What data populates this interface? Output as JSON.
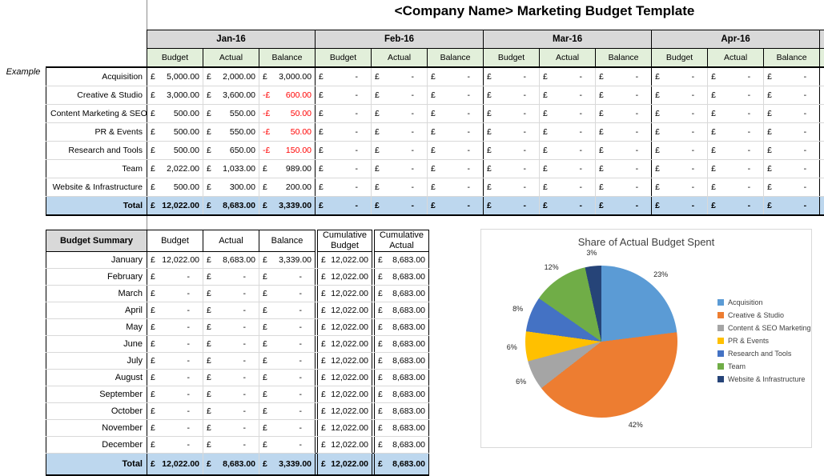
{
  "title": "<Company Name> Marketing Budget Template",
  "example_label": "Example",
  "currency": "£",
  "monthly_table": {
    "sub_headers": [
      "Budget",
      "Actual",
      "Balance"
    ],
    "categories": [
      "Acquisition",
      "Creative & Studio",
      "Content Marketing & SEO",
      "PR & Events",
      "Research and Tools",
      "Team",
      "Website & Infrastructure"
    ],
    "total_label": "Total",
    "months": [
      {
        "label": "Jan-16",
        "rows": [
          [
            5000,
            2000,
            3000
          ],
          [
            3000,
            3600,
            -600
          ],
          [
            500,
            550,
            -50
          ],
          [
            500,
            550,
            -50
          ],
          [
            500,
            650,
            -150
          ],
          [
            2022,
            1033,
            989
          ],
          [
            500,
            300,
            200
          ]
        ],
        "total": [
          12022,
          8683,
          3339
        ]
      },
      {
        "label": "Feb-16",
        "rows": [
          [
            null,
            null,
            null
          ],
          [
            null,
            null,
            null
          ],
          [
            null,
            null,
            null
          ],
          [
            null,
            null,
            null
          ],
          [
            null,
            null,
            null
          ],
          [
            null,
            null,
            null
          ],
          [
            null,
            null,
            null
          ]
        ],
        "total": [
          null,
          null,
          null
        ]
      },
      {
        "label": "Mar-16",
        "rows": [
          [
            null,
            null,
            null
          ],
          [
            null,
            null,
            null
          ],
          [
            null,
            null,
            null
          ],
          [
            null,
            null,
            null
          ],
          [
            null,
            null,
            null
          ],
          [
            null,
            null,
            null
          ],
          [
            null,
            null,
            null
          ]
        ],
        "total": [
          null,
          null,
          null
        ]
      },
      {
        "label": "Apr-16",
        "rows": [
          [
            null,
            null,
            null
          ],
          [
            null,
            null,
            null
          ],
          [
            null,
            null,
            null
          ],
          [
            null,
            null,
            null
          ],
          [
            null,
            null,
            null
          ],
          [
            null,
            null,
            null
          ],
          [
            null,
            null,
            null
          ]
        ],
        "total": [
          null,
          null,
          null
        ]
      }
    ]
  },
  "summary_table": {
    "header": {
      "title": "Budget Summary",
      "columns": [
        "Budget",
        "Actual",
        "Balance",
        "Cumulative Budget",
        "Cumulative Actual"
      ]
    },
    "rows": [
      {
        "label": "January",
        "values": [
          12022,
          8683,
          3339,
          12022,
          8683
        ]
      },
      {
        "label": "February",
        "values": [
          null,
          null,
          null,
          12022,
          8683
        ]
      },
      {
        "label": "March",
        "values": [
          null,
          null,
          null,
          12022,
          8683
        ]
      },
      {
        "label": "April",
        "values": [
          null,
          null,
          null,
          12022,
          8683
        ]
      },
      {
        "label": "May",
        "values": [
          null,
          null,
          null,
          12022,
          8683
        ]
      },
      {
        "label": "June",
        "values": [
          null,
          null,
          null,
          12022,
          8683
        ]
      },
      {
        "label": "July",
        "values": [
          null,
          null,
          null,
          12022,
          8683
        ]
      },
      {
        "label": "August",
        "values": [
          null,
          null,
          null,
          12022,
          8683
        ]
      },
      {
        "label": "September",
        "values": [
          null,
          null,
          null,
          12022,
          8683
        ]
      },
      {
        "label": "October",
        "values": [
          null,
          null,
          null,
          12022,
          8683
        ]
      },
      {
        "label": "November",
        "values": [
          null,
          null,
          null,
          12022,
          8683
        ]
      },
      {
        "label": "December",
        "values": [
          null,
          null,
          null,
          12022,
          8683
        ]
      }
    ],
    "total": {
      "label": "Total",
      "values": [
        12022,
        8683,
        3339,
        12022,
        8683
      ]
    }
  },
  "chart_data": {
    "type": "pie",
    "title": "Share of Actual Budget Spent",
    "labels": [
      "Acquisition",
      "Creative & Studio",
      "Content & SEO Marketing",
      "PR & Events",
      "Research and Tools",
      "Team",
      "Website & Infrastructure"
    ],
    "values": [
      2000,
      3600,
      550,
      550,
      650,
      1033,
      300
    ],
    "percent_labels": [
      "23%",
      "42%",
      "6%",
      "6%",
      "8%",
      "12%",
      "3%"
    ],
    "colors": [
      "#5B9BD5",
      "#ED7D31",
      "#A5A5A5",
      "#FFC000",
      "#4472C4",
      "#70AD47",
      "#264478"
    ],
    "legend_position": "right",
    "start_angle": 0,
    "direction": "clockwise"
  }
}
